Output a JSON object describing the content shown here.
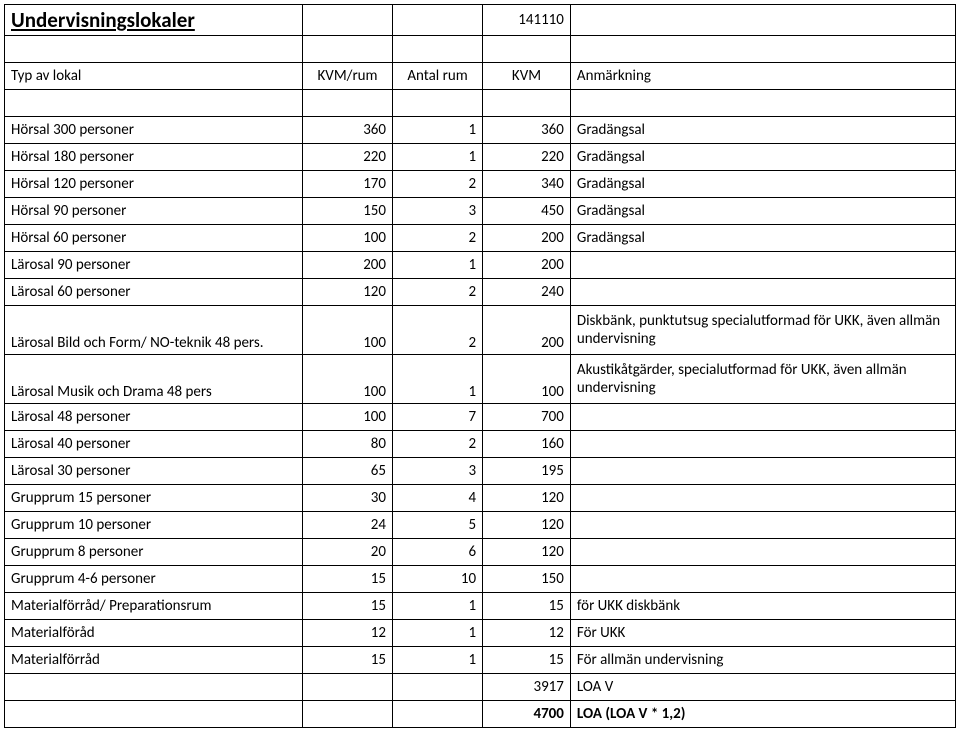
{
  "title": "Undervisningslokaler",
  "date": "141110",
  "header": {
    "c1": "Typ av lokal",
    "c2": "KVM/rum",
    "c3": "Antal rum",
    "c4": "KVM",
    "c5": "Anmärkning"
  },
  "rows": [
    {
      "c1": "Hörsal 300 personer",
      "c2": "360",
      "c3": "1",
      "c4": "360",
      "c5": "Gradängsal"
    },
    {
      "c1": "Hörsal 180 personer",
      "c2": "220",
      "c3": "1",
      "c4": "220",
      "c5": "Gradängsal"
    },
    {
      "c1": "Hörsal 120 personer",
      "c2": "170",
      "c3": "2",
      "c4": "340",
      "c5": "Gradängsal"
    },
    {
      "c1": "Hörsal 90 personer",
      "c2": "150",
      "c3": "3",
      "c4": "450",
      "c5": "Gradängsal"
    },
    {
      "c1": "Hörsal 60 personer",
      "c2": "100",
      "c3": "2",
      "c4": "200",
      "c5": "Gradängsal"
    },
    {
      "c1": "Lärosal 90 personer",
      "c2": "200",
      "c3": "1",
      "c4": "200",
      "c5": ""
    },
    {
      "c1": "Lärosal 60 personer",
      "c2": "120",
      "c3": "2",
      "c4": "240",
      "c5": ""
    },
    {
      "c1": "Lärosal Bild och Form/ NO-teknik 48 pers.",
      "c2": "100",
      "c3": "2",
      "c4": "200",
      "c5": "Diskbänk, punktutsug specialutformad för UKK, även allmän undervisning",
      "tall": true
    },
    {
      "c1": "Lärosal Musik och Drama 48 pers",
      "c2": "100",
      "c3": "1",
      "c4": "100",
      "c5": "Akustikåtgärder, specialutformad för UKK, även allmän undervisning",
      "tall": true
    },
    {
      "c1": "Lärosal 48 personer",
      "c2": "100",
      "c3": "7",
      "c4": "700",
      "c5": ""
    },
    {
      "c1": "Lärosal 40 personer",
      "c2": "80",
      "c3": "2",
      "c4": "160",
      "c5": ""
    },
    {
      "c1": "Lärosal 30 personer",
      "c2": "65",
      "c3": "3",
      "c4": "195",
      "c5": ""
    },
    {
      "c1": "Grupprum 15 personer",
      "c2": "30",
      "c3": "4",
      "c4": "120",
      "c5": ""
    },
    {
      "c1": "Grupprum 10 personer",
      "c2": "24",
      "c3": "5",
      "c4": "120",
      "c5": ""
    },
    {
      "c1": "Grupprum 8 personer",
      "c2": "20",
      "c3": "6",
      "c4": "120",
      "c5": ""
    },
    {
      "c1": "Grupprum 4-6 personer",
      "c2": "15",
      "c3": "10",
      "c4": "150",
      "c5": ""
    },
    {
      "c1": "Materialförråd/ Preparationsrum",
      "c2": "15",
      "c3": "1",
      "c4": "15",
      "c5": "för UKK diskbänk"
    },
    {
      "c1": "Materialföråd",
      "c2": "12",
      "c3": "1",
      "c4": "12",
      "c5": "För UKK"
    },
    {
      "c1": "Materialförråd",
      "c2": "15",
      "c3": "1",
      "c4": "15",
      "c5": "För allmän  undervisning"
    }
  ],
  "totals": [
    {
      "c4": "3917",
      "c5": "LOA V",
      "bold": false
    },
    {
      "c4": "4700",
      "c5": "LOA  (LOA V * 1,2)",
      "bold": true
    }
  ]
}
